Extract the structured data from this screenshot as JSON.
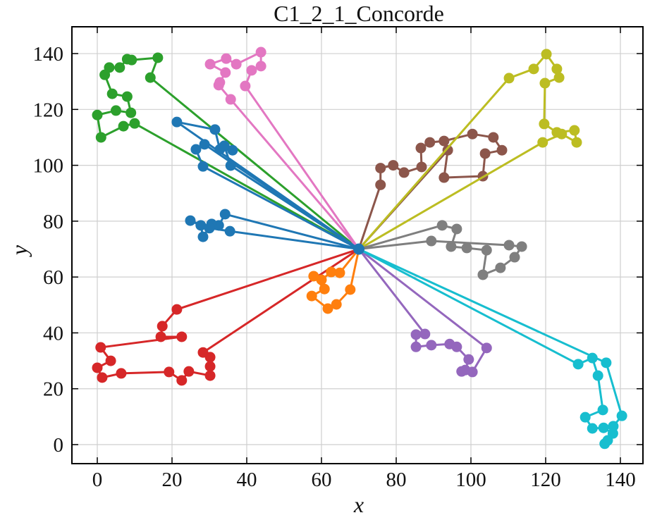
{
  "chart_data": {
    "type": "line",
    "title": "C1_2_1_Concorde",
    "xlabel": "x",
    "ylabel": "y",
    "xlim": [
      -5,
      145
    ],
    "ylim": [
      -7,
      149
    ],
    "xticks": [
      0,
      20,
      40,
      60,
      80,
      100,
      120,
      140
    ],
    "yticks": [
      0,
      20,
      40,
      60,
      80,
      100,
      120,
      140
    ],
    "grid": true,
    "depot": {
      "x": 70,
      "y": 70,
      "color": "#1f77b4"
    },
    "routes": [
      {
        "name": "route-green",
        "color": "#2ca02c",
        "points": [
          [
            10,
            115
          ],
          [
            7,
            114
          ],
          [
            1,
            110
          ],
          [
            0,
            118
          ],
          [
            5,
            119.6
          ],
          [
            9,
            118.8
          ],
          [
            8,
            124.6
          ],
          [
            4,
            125.6
          ],
          [
            2,
            132.4
          ],
          [
            3.2,
            135
          ],
          [
            6,
            135
          ],
          [
            8,
            138
          ],
          [
            9.2,
            137.7
          ],
          [
            16.2,
            138.5
          ],
          [
            14.2,
            131.4
          ]
        ]
      },
      {
        "name": "route-pink",
        "color": "#e377c2",
        "points": [
          [
            35.7,
            123.6
          ],
          [
            32.5,
            128.7
          ],
          [
            32.8,
            129.7
          ],
          [
            34.3,
            133.2
          ],
          [
            30.2,
            136.2
          ],
          [
            34.5,
            138.2
          ],
          [
            37.2,
            136.2
          ],
          [
            43.8,
            140.5
          ],
          [
            43.8,
            135.5
          ],
          [
            41.3,
            134
          ],
          [
            39.6,
            128.4
          ]
        ]
      },
      {
        "name": "route-blue-upper-1",
        "color": "#1f77b4",
        "points": [
          [
            21.3,
            115.5
          ],
          [
            31.5,
            112.8
          ],
          [
            32.8,
            105.7
          ],
          [
            36.2,
            105.4
          ],
          [
            34,
            107
          ],
          [
            35.7,
            99.9
          ]
        ]
      },
      {
        "name": "route-blue-upper-2",
        "color": "#1f77b4",
        "points": [
          [
            28.3,
            99.6
          ],
          [
            26.4,
            105.7
          ],
          [
            28.7,
            107.5
          ]
        ]
      },
      {
        "name": "route-blue-lower",
        "color": "#1f77b4",
        "points": [
          [
            34.2,
            82.5
          ],
          [
            32.5,
            78.5
          ],
          [
            30.6,
            79
          ],
          [
            28.3,
            74.4
          ],
          [
            27.7,
            78.5
          ],
          [
            24.9,
            80.2
          ],
          [
            30,
            77.5
          ],
          [
            35.5,
            76.4
          ]
        ]
      },
      {
        "name": "route-red",
        "color": "#d62728",
        "points": [
          [
            21.3,
            48.4
          ],
          [
            17.4,
            42.4
          ],
          [
            17,
            38.6
          ],
          [
            22.6,
            38.6
          ],
          [
            0.9,
            34.8
          ],
          [
            3.6,
            30
          ],
          [
            0,
            27.5
          ],
          [
            1.3,
            24
          ],
          [
            6.4,
            25.5
          ],
          [
            19.2,
            26
          ],
          [
            22.6,
            23
          ],
          [
            24.5,
            26.2
          ],
          [
            30.2,
            24.7
          ],
          [
            30.2,
            28
          ],
          [
            30.2,
            31.3
          ],
          [
            28.3,
            33
          ]
        ]
      },
      {
        "name": "route-orange",
        "color": "#ff7f0e",
        "points": [
          [
            64.9,
            61.5
          ],
          [
            62.6,
            61.8
          ],
          [
            60,
            59
          ],
          [
            57.9,
            60.3
          ],
          [
            60.8,
            55.7
          ],
          [
            57.4,
            53.2
          ],
          [
            61.7,
            48.7
          ],
          [
            64,
            50.2
          ],
          [
            67.7,
            55.5
          ]
        ]
      },
      {
        "name": "route-brown",
        "color": "#8c564b",
        "points": [
          [
            75.8,
            93
          ],
          [
            75.8,
            99
          ],
          [
            79.2,
            100
          ],
          [
            82.1,
            97.4
          ],
          [
            86.8,
            99.4
          ],
          [
            86.6,
            106.2
          ],
          [
            89,
            108.2
          ],
          [
            92.8,
            108.7
          ],
          [
            100.4,
            111.2
          ],
          [
            106,
            110
          ],
          [
            108.3,
            105.4
          ],
          [
            103.8,
            104.2
          ],
          [
            103.2,
            96.1
          ],
          [
            92.8,
            95.6
          ],
          [
            93.8,
            105.4
          ]
        ]
      },
      {
        "name": "route-olive",
        "color": "#bcbd22",
        "points": [
          [
            110.2,
            131.2
          ],
          [
            116.8,
            134.5
          ],
          [
            120.2,
            139.8
          ],
          [
            123,
            134.5
          ],
          [
            123.6,
            131.4
          ],
          [
            119.8,
            129.4
          ],
          [
            119.6,
            114.8
          ],
          [
            123,
            111.8
          ],
          [
            127.7,
            112.5
          ],
          [
            128.3,
            108.2
          ],
          [
            124.3,
            111.2
          ],
          [
            119.2,
            108.2
          ]
        ]
      },
      {
        "name": "route-gray",
        "color": "#7f7f7f",
        "points": [
          [
            92.3,
            78.5
          ],
          [
            96.2,
            77.2
          ],
          [
            94.7,
            70.9
          ],
          [
            98.9,
            70.4
          ],
          [
            104.2,
            69.6
          ],
          [
            103.2,
            60.8
          ],
          [
            107.9,
            63.3
          ],
          [
            111.7,
            67.1
          ],
          [
            113.6,
            70.9
          ],
          [
            110.2,
            71.4
          ],
          [
            89.4,
            72.9
          ]
        ]
      },
      {
        "name": "route-purple",
        "color": "#9467bd",
        "points": [
          [
            87.7,
            39.6
          ],
          [
            85.3,
            39.4
          ],
          [
            85.3,
            35
          ],
          [
            89.4,
            35.6
          ],
          [
            94.3,
            36
          ],
          [
            96.2,
            35
          ],
          [
            99.4,
            30.5
          ],
          [
            98.5,
            26.7
          ],
          [
            97.5,
            26.2
          ],
          [
            100.4,
            26
          ],
          [
            104.2,
            34.6
          ]
        ]
      },
      {
        "name": "route-cyan",
        "color": "#17becf",
        "points": [
          [
            136.2,
            29.3
          ],
          [
            140.4,
            10.3
          ],
          [
            138.1,
            6.6
          ],
          [
            136.6,
            1.5
          ],
          [
            135.8,
            0.3
          ],
          [
            138,
            4
          ],
          [
            135.5,
            6
          ],
          [
            132.5,
            5.8
          ],
          [
            130.6,
            9.8
          ],
          [
            135.3,
            12.4
          ],
          [
            134,
            24.7
          ],
          [
            132.5,
            31
          ],
          [
            128.7,
            28.8
          ]
        ]
      }
    ]
  }
}
